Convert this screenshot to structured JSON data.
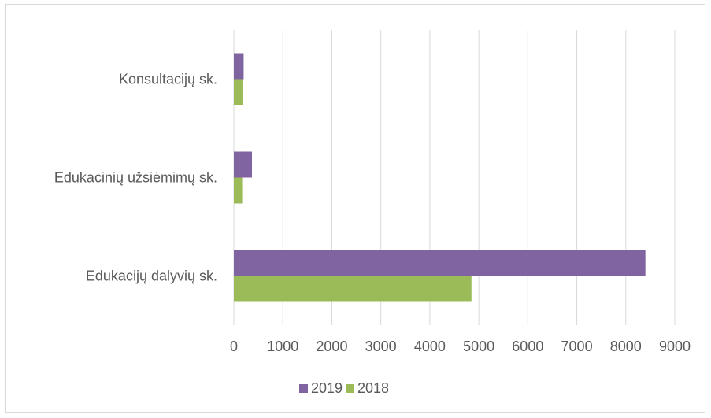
{
  "chart_data": {
    "type": "bar",
    "orientation": "horizontal",
    "categories": [
      "Edukacijų dalyvių sk.",
      "Edukacinių užsiėmimų sk.",
      "Konsultacijų sk."
    ],
    "series": [
      {
        "name": "2019",
        "color": "#8064a2",
        "values": [
          8400,
          370,
          200
        ]
      },
      {
        "name": "2018",
        "color": "#9bbb59",
        "values": [
          4850,
          170,
          190
        ]
      }
    ],
    "xlim": [
      0,
      9000
    ],
    "xticks": [
      "0",
      "1000",
      "2000",
      "3000",
      "4000",
      "5000",
      "6000",
      "7000",
      "8000",
      "9000"
    ],
    "grid": "vertical",
    "legend": "bottom",
    "title": "",
    "xlabel": "",
    "ylabel": ""
  }
}
